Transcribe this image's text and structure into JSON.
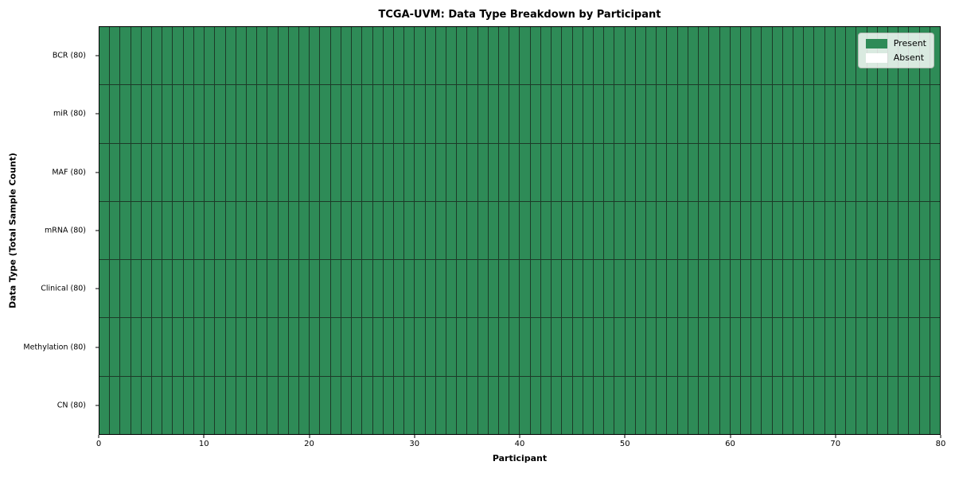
{
  "figure": {
    "background": "#ffffff"
  },
  "chart_data": {
    "type": "heatmap",
    "title": "TCGA-UVM: Data Type Breakdown by Participant",
    "xlabel": "Participant",
    "ylabel": "Data Type (Total Sample Count)",
    "xlim": [
      0,
      80
    ],
    "x_ticks": [
      0,
      10,
      20,
      30,
      40,
      50,
      60,
      70,
      80
    ],
    "n_participants": 80,
    "categories": [
      "BCR (80)",
      "miR (80)",
      "MAF (80)",
      "mRNA (80)",
      "Clinical (80)",
      "Methylation (80)",
      "CN (80)"
    ],
    "series": [
      {
        "name": "BCR (80)",
        "present_count": 80
      },
      {
        "name": "miR (80)",
        "present_count": 80
      },
      {
        "name": "MAF (80)",
        "present_count": 80
      },
      {
        "name": "mRNA (80)",
        "present_count": 80
      },
      {
        "name": "Clinical (80)",
        "present_count": 80
      },
      {
        "name": "Methylation (80)",
        "present_count": 80
      },
      {
        "name": "CN (80)",
        "present_count": 80
      }
    ],
    "legend": {
      "position": "upper right",
      "entries": [
        {
          "label": "Present",
          "color": "#2e8b57"
        },
        {
          "label": "Absent",
          "color": "#ffffff"
        }
      ]
    },
    "grid": false,
    "colors": {
      "present": "#2e8b57",
      "absent": "#ffffff",
      "cell_border": "#1c3a28",
      "axis": "#000000"
    }
  }
}
